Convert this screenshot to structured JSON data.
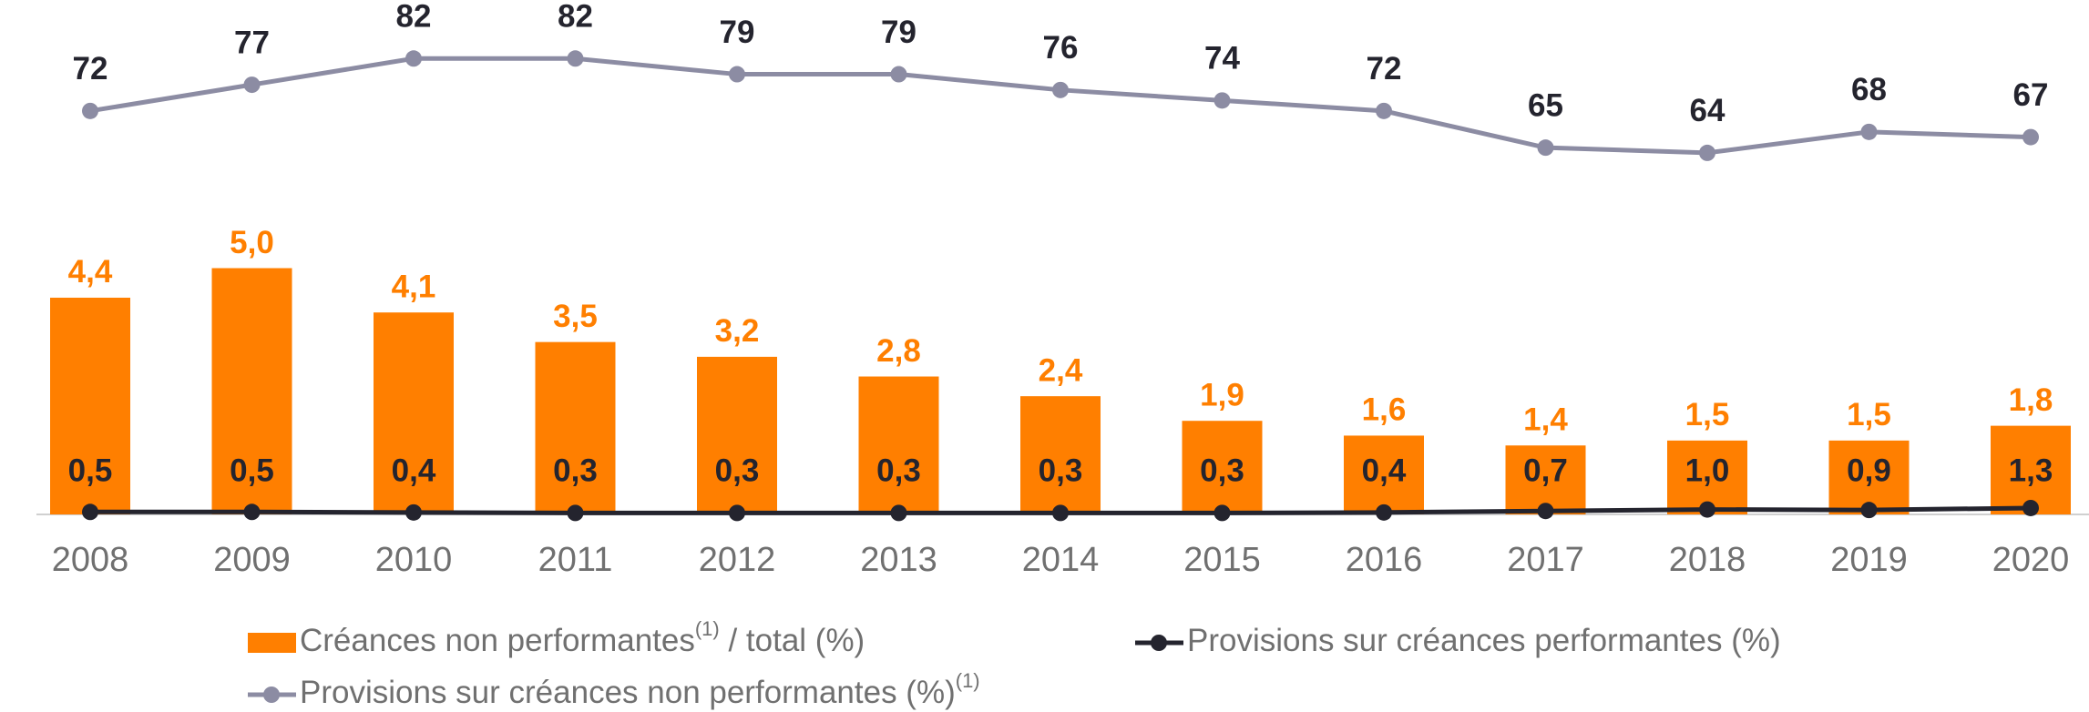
{
  "chart_data": {
    "type": "bar_line",
    "categories": [
      "2008",
      "2009",
      "2010",
      "2011",
      "2012",
      "2013",
      "2014",
      "2015",
      "2016",
      "2017",
      "2018",
      "2019",
      "2020"
    ],
    "series": [
      {
        "name": "Créances non performantes",
        "footnote": "(1)",
        "name_end": " / total (%)",
        "type": "bar",
        "color": "#ff7f00",
        "axis": "y",
        "values": [
          4.4,
          5.0,
          4.1,
          3.5,
          3.2,
          2.8,
          2.4,
          1.9,
          1.6,
          1.4,
          1.5,
          1.5,
          1.8
        ],
        "value_labels": [
          "4,4",
          "5,0",
          "4,1",
          "3,5",
          "3,2",
          "2,8",
          "2,4",
          "1,9",
          "1,6",
          "1,4",
          "1,5",
          "1,5",
          "1,8"
        ]
      },
      {
        "name": "Provisions sur créances performantes (%)",
        "type": "line",
        "color": "#24242e",
        "axis": "y3",
        "values": [
          0.5,
          0.5,
          0.4,
          0.3,
          0.3,
          0.3,
          0.3,
          0.3,
          0.4,
          0.7,
          1.0,
          0.9,
          1.3
        ],
        "value_labels": [
          "0,5",
          "0,5",
          "0,4",
          "0,3",
          "0,3",
          "0,3",
          "0,3",
          "0,3",
          "0,4",
          "0,7",
          "1,0",
          "0,9",
          "1,3"
        ]
      },
      {
        "name": "Provisions sur créances non performantes (%)",
        "footnote": "(1)",
        "type": "line",
        "color": "#8c8ca3",
        "axis": "y2",
        "values": [
          72,
          77,
          82,
          82,
          79,
          79,
          76,
          74,
          72,
          65,
          64,
          68,
          67
        ]
      }
    ],
    "ylim": [
      0,
      10
    ],
    "y2lim": [
      -5,
      89
    ],
    "y3lim": [
      0,
      100
    ]
  }
}
